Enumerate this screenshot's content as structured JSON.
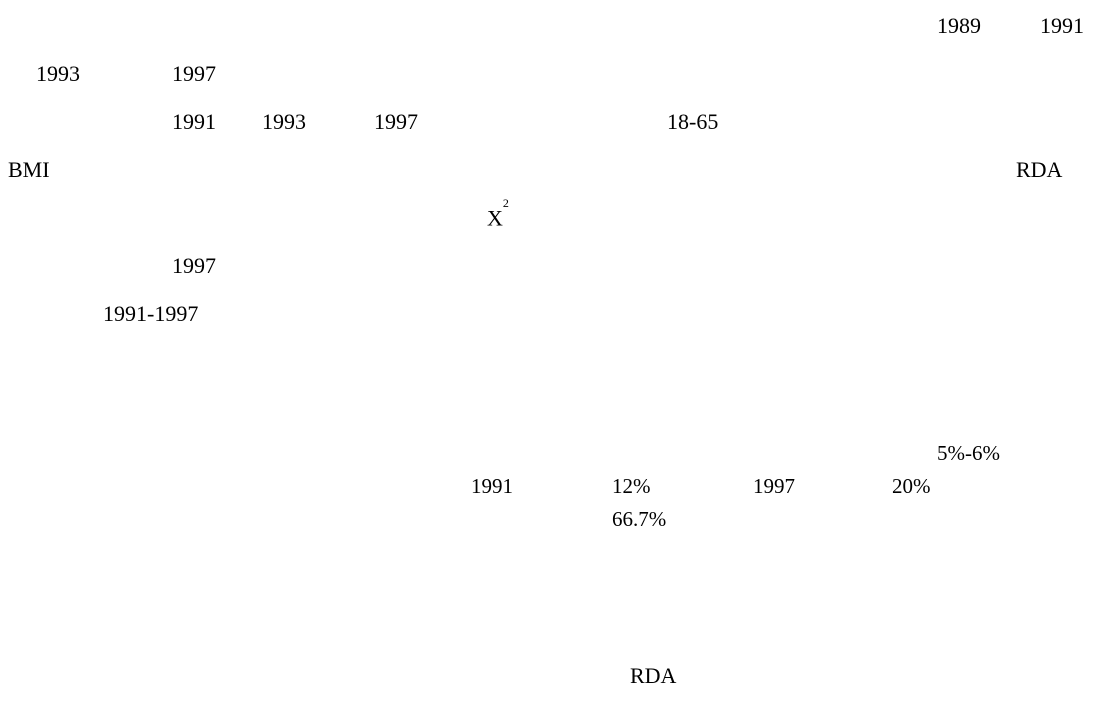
{
  "lines": [
    {
      "items": [
        "1989",
        "1991"
      ]
    },
    {
      "items": [
        "1993",
        "1997"
      ]
    },
    {
      "items": [
        "1991",
        "1993",
        "1997",
        "18-65"
      ]
    },
    {
      "items": [
        "BMI",
        "RDA"
      ]
    },
    {
      "x_base": "X",
      "x_sup": "2"
    },
    {
      "items": [
        "1997"
      ]
    },
    {
      "items": [
        "1991-1997"
      ]
    },
    {
      "items": [
        "5%-6%"
      ]
    },
    {
      "items": [
        "1991",
        "12%",
        "1997",
        "20%"
      ]
    },
    {
      "items": [
        "66.7%"
      ]
    },
    {
      "items": [
        "RDA"
      ]
    }
  ]
}
